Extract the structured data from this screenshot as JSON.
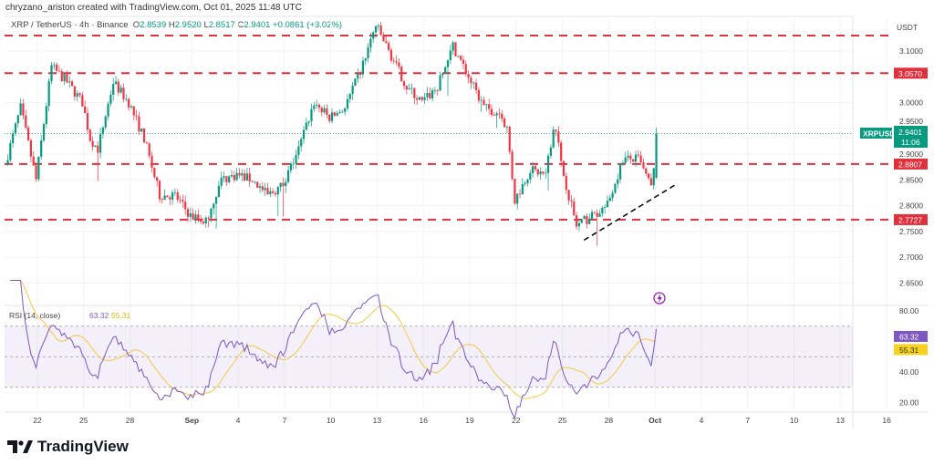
{
  "credit": "chryzano_ariston created with TradingView.com, Oct 01, 2025 11:48 UTC",
  "legend": {
    "symbol": "XRP / TetherUS · 4h · Binance",
    "o_label": "O",
    "o": "2.8539",
    "h_label": "H",
    "h": "2.9520",
    "l_label": "L",
    "l": "2.8517",
    "c_label": "C",
    "c": "2.9401",
    "change": "+0.0861 (+3.02%)"
  },
  "branding": "TradingView",
  "colors": {
    "up": "#089981",
    "down": "#f23645",
    "level": "#e0303c",
    "rsi": "#7e57c2",
    "rsi_ma": "#f5c842",
    "last": "#089981"
  },
  "chart_data": {
    "type": "candlestick",
    "symbol_label": "XRPUSDT",
    "currency": "USDT",
    "last_price": "2.9401",
    "countdown": "11:06",
    "price_ticks": [
      "3.1000",
      "3.0000",
      "2.9500",
      "2.9000",
      "2.8500",
      "2.8000",
      "2.7500",
      "2.7000",
      "2.6500"
    ],
    "price_range": [
      2.62,
      3.19
    ],
    "levels": [
      "3.1300",
      "3.0570",
      "2.8807",
      "2.7727"
    ],
    "level_labels": [
      "",
      "3.0570",
      "2.8807",
      "2.7727"
    ],
    "trendline": {
      "from": {
        "date": "2025-09-26",
        "price": 2.733
      },
      "to": {
        "date": "2025-10-02",
        "price": 2.84
      }
    },
    "x_ticks": [
      "22",
      "25",
      "28",
      "Sep",
      "4",
      "7",
      "10",
      "13",
      "16",
      "19",
      "22",
      "25",
      "28",
      "Oct",
      "4",
      "7",
      "10",
      "13",
      "16"
    ],
    "x_tick_dates": [
      "2025-08-22",
      "2025-08-25",
      "2025-08-28",
      "2025-09-01",
      "2025-09-04",
      "2025-09-07",
      "2025-09-10",
      "2025-09-13",
      "2025-09-16",
      "2025-09-19",
      "2025-09-22",
      "2025-09-25",
      "2025-09-28",
      "2025-10-01",
      "2025-10-04",
      "2025-10-07",
      "2025-10-10",
      "2025-10-13",
      "2025-10-16"
    ],
    "close_path": [
      [
        "2025-08-20",
        2.88
      ],
      [
        "2025-08-21",
        2.99
      ],
      [
        "2025-08-22",
        2.85
      ],
      [
        "2025-08-23",
        3.07
      ],
      [
        "2025-08-24",
        3.04
      ],
      [
        "2025-08-25",
        3.0
      ],
      [
        "2025-08-25T12",
        2.93
      ],
      [
        "2025-08-26",
        2.91
      ],
      [
        "2025-08-27",
        3.04
      ],
      [
        "2025-08-28",
        3.0
      ],
      [
        "2025-08-29",
        2.93
      ],
      [
        "2025-08-30",
        2.82
      ],
      [
        "2025-08-31",
        2.82
      ],
      [
        "2025-09-01",
        2.78
      ],
      [
        "2025-09-02",
        2.77
      ],
      [
        "2025-09-03",
        2.85
      ],
      [
        "2025-09-04",
        2.86
      ],
      [
        "2025-09-05",
        2.85
      ],
      [
        "2025-09-06",
        2.82
      ],
      [
        "2025-09-07",
        2.84
      ],
      [
        "2025-09-08",
        2.91
      ],
      [
        "2025-09-09",
        3.0
      ],
      [
        "2025-09-10",
        2.97
      ],
      [
        "2025-09-11",
        2.99
      ],
      [
        "2025-09-12",
        3.06
      ],
      [
        "2025-09-13",
        3.15
      ],
      [
        "2025-09-14",
        3.09
      ],
      [
        "2025-09-15",
        3.03
      ],
      [
        "2025-09-16",
        3.0
      ],
      [
        "2025-09-17",
        3.03
      ],
      [
        "2025-09-18",
        3.11
      ],
      [
        "2025-09-19",
        3.05
      ],
      [
        "2025-09-20",
        2.99
      ],
      [
        "2025-09-21",
        2.98
      ],
      [
        "2025-09-21T12",
        2.95
      ],
      [
        "2025-09-22",
        2.81
      ],
      [
        "2025-09-23",
        2.87
      ],
      [
        "2025-09-24",
        2.86
      ],
      [
        "2025-09-24T14",
        2.97
      ],
      [
        "2025-09-25",
        2.88
      ],
      [
        "2025-09-26",
        2.76
      ],
      [
        "2025-09-27",
        2.78
      ],
      [
        "2025-09-28",
        2.8
      ],
      [
        "2025-09-29",
        2.89
      ],
      [
        "2025-09-30",
        2.89
      ],
      [
        "2025-09-30T22",
        2.83
      ],
      [
        "2025-10-01T04",
        2.94
      ]
    ],
    "rsi": {
      "label": "RSI (14, close)",
      "value": "63.32",
      "ma": "55.31",
      "ticks": [
        "80.00",
        "40.00",
        "20.00"
      ],
      "bands": [
        70,
        50,
        30
      ]
    }
  }
}
